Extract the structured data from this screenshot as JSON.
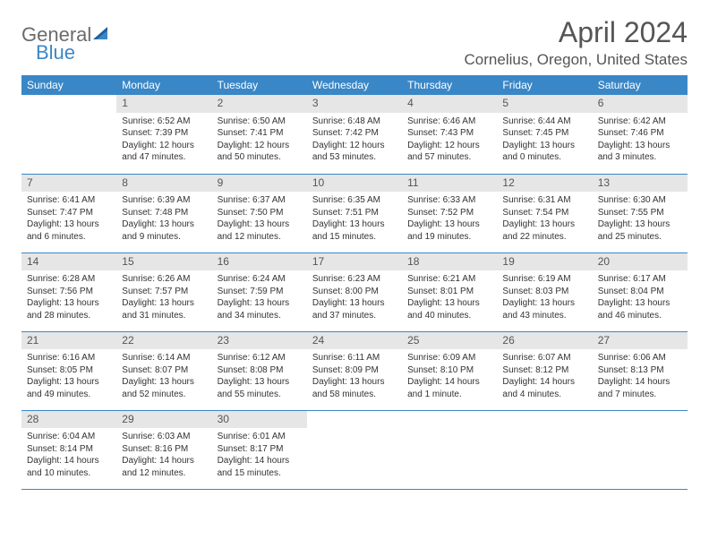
{
  "brand": {
    "part1": "General",
    "part2": "Blue"
  },
  "title": "April 2024",
  "location": "Cornelius, Oregon, United States",
  "colors": {
    "header_bg": "#3a87c7",
    "header_fg": "#ffffff",
    "daynum_bg": "#e6e6e6",
    "text": "#333333",
    "rule": "#3a87c7",
    "logo_gray": "#6b6b6b",
    "logo_blue": "#3a87c7"
  },
  "weekdays": [
    "Sunday",
    "Monday",
    "Tuesday",
    "Wednesday",
    "Thursday",
    "Friday",
    "Saturday"
  ],
  "weeks": [
    [
      null,
      {
        "n": "1",
        "sr": "6:52 AM",
        "ss": "7:39 PM",
        "dl": "12 hours and 47 minutes."
      },
      {
        "n": "2",
        "sr": "6:50 AM",
        "ss": "7:41 PM",
        "dl": "12 hours and 50 minutes."
      },
      {
        "n": "3",
        "sr": "6:48 AM",
        "ss": "7:42 PM",
        "dl": "12 hours and 53 minutes."
      },
      {
        "n": "4",
        "sr": "6:46 AM",
        "ss": "7:43 PM",
        "dl": "12 hours and 57 minutes."
      },
      {
        "n": "5",
        "sr": "6:44 AM",
        "ss": "7:45 PM",
        "dl": "13 hours and 0 minutes."
      },
      {
        "n": "6",
        "sr": "6:42 AM",
        "ss": "7:46 PM",
        "dl": "13 hours and 3 minutes."
      }
    ],
    [
      {
        "n": "7",
        "sr": "6:41 AM",
        "ss": "7:47 PM",
        "dl": "13 hours and 6 minutes."
      },
      {
        "n": "8",
        "sr": "6:39 AM",
        "ss": "7:48 PM",
        "dl": "13 hours and 9 minutes."
      },
      {
        "n": "9",
        "sr": "6:37 AM",
        "ss": "7:50 PM",
        "dl": "13 hours and 12 minutes."
      },
      {
        "n": "10",
        "sr": "6:35 AM",
        "ss": "7:51 PM",
        "dl": "13 hours and 15 minutes."
      },
      {
        "n": "11",
        "sr": "6:33 AM",
        "ss": "7:52 PM",
        "dl": "13 hours and 19 minutes."
      },
      {
        "n": "12",
        "sr": "6:31 AM",
        "ss": "7:54 PM",
        "dl": "13 hours and 22 minutes."
      },
      {
        "n": "13",
        "sr": "6:30 AM",
        "ss": "7:55 PM",
        "dl": "13 hours and 25 minutes."
      }
    ],
    [
      {
        "n": "14",
        "sr": "6:28 AM",
        "ss": "7:56 PM",
        "dl": "13 hours and 28 minutes."
      },
      {
        "n": "15",
        "sr": "6:26 AM",
        "ss": "7:57 PM",
        "dl": "13 hours and 31 minutes."
      },
      {
        "n": "16",
        "sr": "6:24 AM",
        "ss": "7:59 PM",
        "dl": "13 hours and 34 minutes."
      },
      {
        "n": "17",
        "sr": "6:23 AM",
        "ss": "8:00 PM",
        "dl": "13 hours and 37 minutes."
      },
      {
        "n": "18",
        "sr": "6:21 AM",
        "ss": "8:01 PM",
        "dl": "13 hours and 40 minutes."
      },
      {
        "n": "19",
        "sr": "6:19 AM",
        "ss": "8:03 PM",
        "dl": "13 hours and 43 minutes."
      },
      {
        "n": "20",
        "sr": "6:17 AM",
        "ss": "8:04 PM",
        "dl": "13 hours and 46 minutes."
      }
    ],
    [
      {
        "n": "21",
        "sr": "6:16 AM",
        "ss": "8:05 PM",
        "dl": "13 hours and 49 minutes."
      },
      {
        "n": "22",
        "sr": "6:14 AM",
        "ss": "8:07 PM",
        "dl": "13 hours and 52 minutes."
      },
      {
        "n": "23",
        "sr": "6:12 AM",
        "ss": "8:08 PM",
        "dl": "13 hours and 55 minutes."
      },
      {
        "n": "24",
        "sr": "6:11 AM",
        "ss": "8:09 PM",
        "dl": "13 hours and 58 minutes."
      },
      {
        "n": "25",
        "sr": "6:09 AM",
        "ss": "8:10 PM",
        "dl": "14 hours and 1 minute."
      },
      {
        "n": "26",
        "sr": "6:07 AM",
        "ss": "8:12 PM",
        "dl": "14 hours and 4 minutes."
      },
      {
        "n": "27",
        "sr": "6:06 AM",
        "ss": "8:13 PM",
        "dl": "14 hours and 7 minutes."
      }
    ],
    [
      {
        "n": "28",
        "sr": "6:04 AM",
        "ss": "8:14 PM",
        "dl": "14 hours and 10 minutes."
      },
      {
        "n": "29",
        "sr": "6:03 AM",
        "ss": "8:16 PM",
        "dl": "14 hours and 12 minutes."
      },
      {
        "n": "30",
        "sr": "6:01 AM",
        "ss": "8:17 PM",
        "dl": "14 hours and 15 minutes."
      },
      null,
      null,
      null,
      null
    ]
  ],
  "labels": {
    "sunrise": "Sunrise:",
    "sunset": "Sunset:",
    "daylight": "Daylight:"
  }
}
